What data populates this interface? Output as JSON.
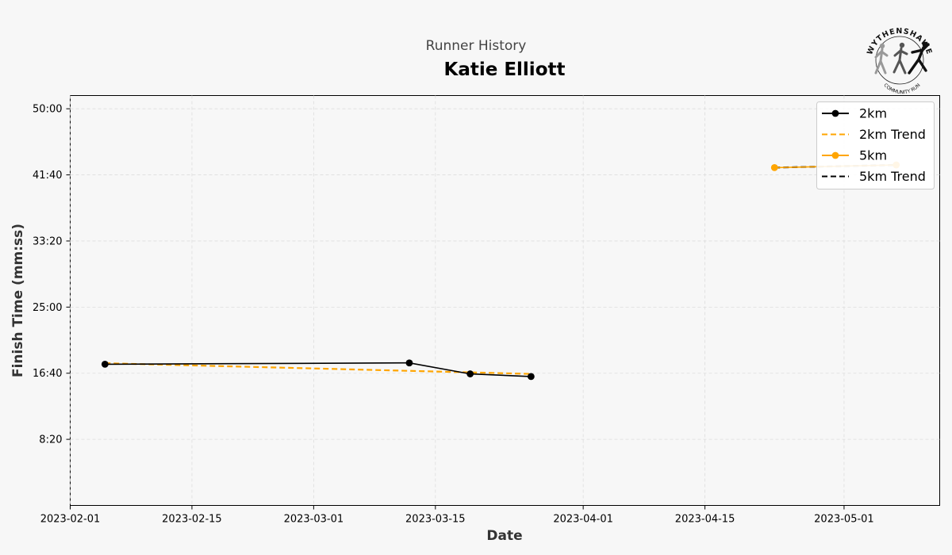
{
  "header": {
    "subtitle": "Runner History",
    "runner_name": "Katie Elliott"
  },
  "logo": {
    "top_text": "WYTHENSHAWE",
    "bottom_text": "COMMUNITY RUN"
  },
  "chart_data": {
    "type": "line",
    "title": "Katie Elliott",
    "xlabel": "Date",
    "ylabel": "Finish Time (mm:ss)",
    "x_type": "date",
    "xlim": [
      "2023-02-01",
      "2023-05-12"
    ],
    "ylim_seconds": [
      0,
      3100
    ],
    "x_ticks": [
      "2023-02-01",
      "2023-02-15",
      "2023-03-01",
      "2023-03-15",
      "2023-04-01",
      "2023-04-15",
      "2023-05-01"
    ],
    "y_ticks_seconds": [
      500,
      1000,
      1500,
      2000,
      2500,
      3000
    ],
    "y_tick_labels": [
      "8:20",
      "16:40",
      "25:00",
      "33:20",
      "41:40",
      "50:00"
    ],
    "grid": true,
    "legend_position": "top-right",
    "series": [
      {
        "name": "2km",
        "style": "solid-marker",
        "color": "#000000",
        "points": [
          {
            "x": "2023-02-05",
            "y_seconds": 1068,
            "y": "17:48"
          },
          {
            "x": "2023-03-12",
            "y_seconds": 1078,
            "y": "17:58"
          },
          {
            "x": "2023-03-19",
            "y_seconds": 995,
            "y": "16:35"
          },
          {
            "x": "2023-03-26",
            "y_seconds": 975,
            "y": "16:15"
          }
        ]
      },
      {
        "name": "2km Trend",
        "style": "dashed",
        "color": "#FFA500",
        "points": [
          {
            "x": "2023-02-05",
            "y_seconds": 1076
          },
          {
            "x": "2023-03-26",
            "y_seconds": 995
          }
        ]
      },
      {
        "name": "5km",
        "style": "solid-marker",
        "color": "#FFA500",
        "points": [
          {
            "x": "2023-04-23",
            "y_seconds": 2555,
            "y": "42:35"
          },
          {
            "x": "2023-05-07",
            "y_seconds": 2575,
            "y": "42:55"
          }
        ]
      },
      {
        "name": "5km Trend",
        "style": "dashed",
        "color": "#000000",
        "points": [
          {
            "x": "2023-04-23",
            "y_seconds": 2555
          },
          {
            "x": "2023-05-07",
            "y_seconds": 2575
          }
        ]
      }
    ]
  }
}
